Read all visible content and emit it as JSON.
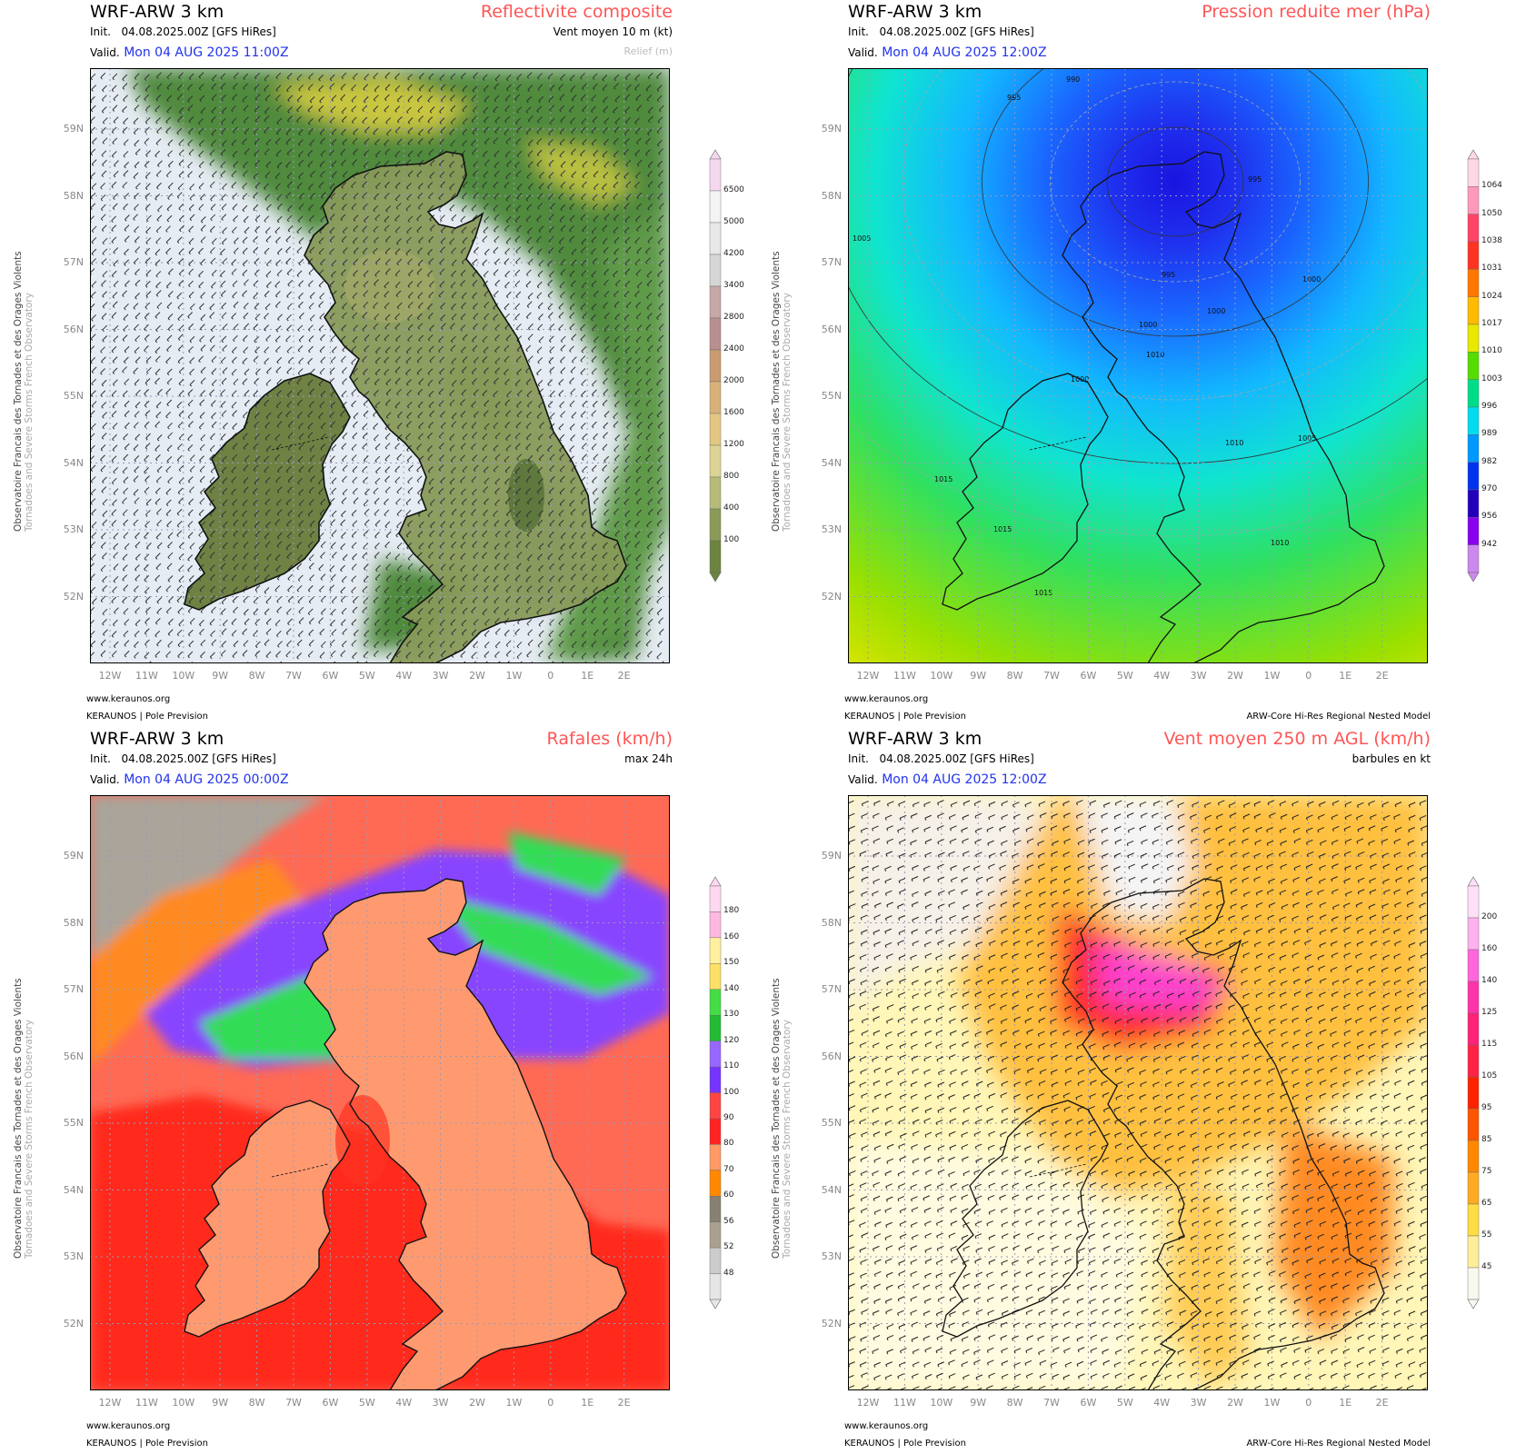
{
  "common": {
    "model": "WRF-ARW 3 km",
    "init_label": "Init.",
    "init_value": "04.08.2025.00Z [GFS HiRes]",
    "valid_label": "Valid.",
    "side_line1": "Observatoire Francais des Tornades et des Orages Violents",
    "side_line2": "Tornadoes and Severe Storms French Observatory",
    "site": "www.keraunos.org",
    "org": "KERAUNOS | Pole Prevision",
    "model_desc": "ARW-Core Hi-Res Regional Nested Model",
    "lat_labels": [
      "59N",
      "58N",
      "57N",
      "56N",
      "55N",
      "54N",
      "53N",
      "52N"
    ],
    "lon_labels": [
      "12W",
      "11W",
      "10W",
      "9W",
      "8W",
      "7W",
      "6W",
      "5W",
      "4W",
      "3W",
      "2W",
      "1W",
      "0",
      "1E",
      "2E"
    ]
  },
  "panels": [
    {
      "title": "Reflectivite composite",
      "subtitle": "Vent moyen 10 m (kt)",
      "subtitle2": "Relief (m)",
      "valid": "Mon 04 AUG 2025 11:00Z",
      "has_model_desc": false,
      "colorbar": {
        "labels": [
          "6500",
          "5000",
          "4200",
          "3400",
          "2800",
          "2400",
          "2000",
          "1600",
          "1200",
          "800",
          "400",
          "100"
        ],
        "colors": [
          "#f5d8f0",
          "#f4f4f4",
          "#e8e8e8",
          "#d6d6d6",
          "#c7a7a7",
          "#b89090",
          "#c89c70",
          "#d8b27a",
          "#e3c683",
          "#dcd394",
          "#b7bb7a",
          "#8a9a58",
          "#6c8440"
        ]
      }
    },
    {
      "title": "Pression reduite mer (hPa)",
      "subtitle": "",
      "subtitle2": "",
      "valid": "Mon 04 AUG 2025 12:00Z",
      "has_model_desc": true,
      "colorbar": {
        "labels": [
          "1064",
          "1050",
          "1038",
          "1031",
          "1024",
          "1017",
          "1010",
          "1003",
          "996",
          "989",
          "982",
          "970",
          "956",
          "942"
        ],
        "colors": [
          "#ffd8e8",
          "#ff99bb",
          "#ff4466",
          "#ff3322",
          "#ff7700",
          "#ffbb00",
          "#e8e800",
          "#55dd00",
          "#00dd88",
          "#00ddee",
          "#0099ff",
          "#0033ee",
          "#2200bb",
          "#8800ee",
          "#cc88ee"
        ]
      },
      "isobars": [
        "990",
        "995",
        "995",
        "995",
        "1000",
        "1000",
        "1000",
        "1000",
        "1005",
        "1005",
        "1010",
        "1010",
        "1010",
        "1015",
        "1015",
        "1015"
      ]
    },
    {
      "title": "Rafales (km/h)",
      "subtitle": "max 24h",
      "subtitle2": "",
      "valid": "Mon 04 AUG 2025 00:00Z",
      "has_model_desc": false,
      "colorbar": {
        "labels": [
          "180",
          "160",
          "150",
          "140",
          "130",
          "120",
          "110",
          "100",
          "90",
          "80",
          "70",
          "60",
          "56",
          "52",
          "48"
        ],
        "colors": [
          "#ffd8f0",
          "#ffb8e0",
          "#fff0a0",
          "#ffe066",
          "#44dd44",
          "#22bb33",
          "#9966ff",
          "#7733ff",
          "#ff4444",
          "#ff2222",
          "#ff9966",
          "#ff8800",
          "#888070",
          "#aaa090",
          "#cccccc",
          "#e6e6e6"
        ]
      }
    },
    {
      "title": "Vent moyen 250 m AGL (km/h)",
      "subtitle": "barbules en kt",
      "subtitle2": "",
      "valid": "Mon 04 AUG 2025 12:00Z",
      "has_model_desc": true,
      "colorbar": {
        "labels": [
          "200",
          "160",
          "140",
          "125",
          "115",
          "105",
          "95",
          "85",
          "75",
          "65",
          "55",
          "45"
        ],
        "colors": [
          "#ffe0f8",
          "#ffb0ee",
          "#ff66dd",
          "#ff33aa",
          "#ff2277",
          "#ff2244",
          "#ff2200",
          "#ff5500",
          "#ff8800",
          "#ffaa22",
          "#ffdd44",
          "#ffee99",
          "#f8f8f0"
        ]
      }
    }
  ]
}
